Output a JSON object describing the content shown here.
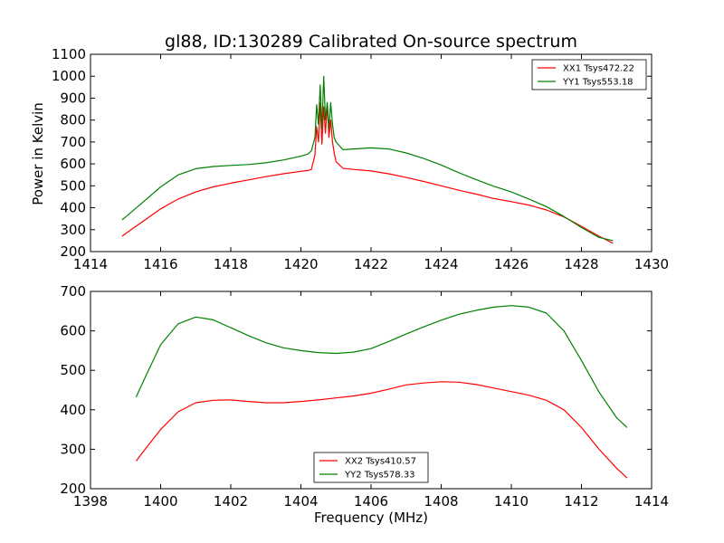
{
  "chart_data": [
    {
      "type": "line",
      "title": "gl88, ID:130289 Calibrated On-source spectrum",
      "xlabel": "",
      "ylabel": "Power in Kelvin",
      "xlim": [
        1414,
        1430
      ],
      "ylim": [
        200,
        1100
      ],
      "xticks": [
        1414,
        1416,
        1418,
        1420,
        1422,
        1424,
        1426,
        1428,
        1430
      ],
      "yticks": [
        200,
        300,
        400,
        500,
        600,
        700,
        800,
        900,
        1000,
        1100
      ],
      "legend_position": "top-right",
      "grid": false,
      "series": [
        {
          "name": "XX1 Tsys472.22",
          "color": "#ff0000",
          "x": [
            1414.9,
            1415.2,
            1415.6,
            1416.0,
            1416.5,
            1417.0,
            1417.5,
            1418.0,
            1418.5,
            1419.0,
            1419.5,
            1420.0,
            1420.2,
            1420.3,
            1420.4,
            1420.45,
            1420.5,
            1420.55,
            1420.6,
            1420.65,
            1420.7,
            1420.75,
            1420.8,
            1420.85,
            1420.9,
            1420.95,
            1421.0,
            1421.2,
            1421.5,
            1422.0,
            1422.5,
            1423.0,
            1423.5,
            1424.0,
            1424.5,
            1425.0,
            1425.5,
            1426.0,
            1426.5,
            1427.0,
            1427.5,
            1428.0,
            1428.5,
            1428.9
          ],
          "y": [
            270,
            305,
            350,
            395,
            440,
            472,
            495,
            512,
            527,
            542,
            555,
            566,
            570,
            575,
            640,
            770,
            700,
            880,
            690,
            860,
            740,
            870,
            720,
            800,
            700,
            650,
            610,
            580,
            575,
            568,
            555,
            538,
            520,
            500,
            480,
            462,
            442,
            428,
            412,
            390,
            358,
            315,
            270,
            238
          ]
        },
        {
          "name": "YY1 Tsys553.18",
          "color": "#008000",
          "x": [
            1414.9,
            1415.2,
            1415.6,
            1416.0,
            1416.5,
            1417.0,
            1417.5,
            1418.0,
            1418.5,
            1419.0,
            1419.5,
            1420.0,
            1420.2,
            1420.3,
            1420.4,
            1420.45,
            1420.5,
            1420.55,
            1420.6,
            1420.65,
            1420.7,
            1420.75,
            1420.8,
            1420.85,
            1420.9,
            1420.95,
            1421.0,
            1421.2,
            1421.5,
            1422.0,
            1422.5,
            1423.0,
            1423.5,
            1424.0,
            1424.5,
            1425.0,
            1425.5,
            1426.0,
            1426.5,
            1427.0,
            1427.5,
            1428.0,
            1428.5,
            1428.9
          ],
          "y": [
            345,
            385,
            440,
            495,
            550,
            578,
            588,
            593,
            597,
            605,
            618,
            635,
            645,
            660,
            720,
            870,
            780,
            960,
            760,
            1000,
            800,
            880,
            760,
            880,
            780,
            720,
            700,
            665,
            668,
            673,
            668,
            650,
            625,
            595,
            560,
            528,
            498,
            472,
            440,
            405,
            360,
            310,
            265,
            250
          ]
        }
      ]
    },
    {
      "type": "line",
      "title": "",
      "xlabel": "Frequency (MHz)",
      "ylabel": "",
      "xlim": [
        1398,
        1414
      ],
      "ylim": [
        200,
        700
      ],
      "xticks": [
        1398,
        1400,
        1402,
        1404,
        1406,
        1408,
        1410,
        1412,
        1414
      ],
      "yticks": [
        200,
        300,
        400,
        500,
        600,
        700
      ],
      "legend_position": "bottom-center",
      "grid": false,
      "series": [
        {
          "name": "XX2 Tsys410.57",
          "color": "#ff0000",
          "x": [
            1399.3,
            1399.6,
            1400.0,
            1400.5,
            1401.0,
            1401.5,
            1402.0,
            1402.5,
            1403.0,
            1403.5,
            1404.0,
            1404.5,
            1405.0,
            1405.5,
            1406.0,
            1406.5,
            1407.0,
            1407.5,
            1408.0,
            1408.5,
            1409.0,
            1409.5,
            1410.0,
            1410.5,
            1411.0,
            1411.5,
            1412.0,
            1412.5,
            1413.0,
            1413.3
          ],
          "y": [
            270,
            305,
            350,
            395,
            418,
            424,
            425,
            421,
            418,
            418,
            421,
            425,
            430,
            435,
            442,
            452,
            463,
            468,
            471,
            470,
            464,
            455,
            446,
            437,
            424,
            400,
            355,
            300,
            252,
            227
          ]
        },
        {
          "name": "YY2 Tsys578.33",
          "color": "#008000",
          "x": [
            1399.3,
            1399.6,
            1400.0,
            1400.5,
            1401.0,
            1401.5,
            1402.0,
            1402.5,
            1403.0,
            1403.5,
            1404.0,
            1404.5,
            1405.0,
            1405.5,
            1406.0,
            1406.5,
            1407.0,
            1407.5,
            1408.0,
            1408.5,
            1409.0,
            1409.5,
            1410.0,
            1410.5,
            1411.0,
            1411.5,
            1412.0,
            1412.5,
            1413.0,
            1413.3
          ],
          "y": [
            432,
            490,
            565,
            618,
            635,
            628,
            608,
            588,
            570,
            557,
            550,
            545,
            543,
            546,
            555,
            573,
            592,
            610,
            627,
            642,
            652,
            660,
            664,
            660,
            645,
            600,
            525,
            445,
            380,
            355
          ]
        }
      ]
    }
  ]
}
